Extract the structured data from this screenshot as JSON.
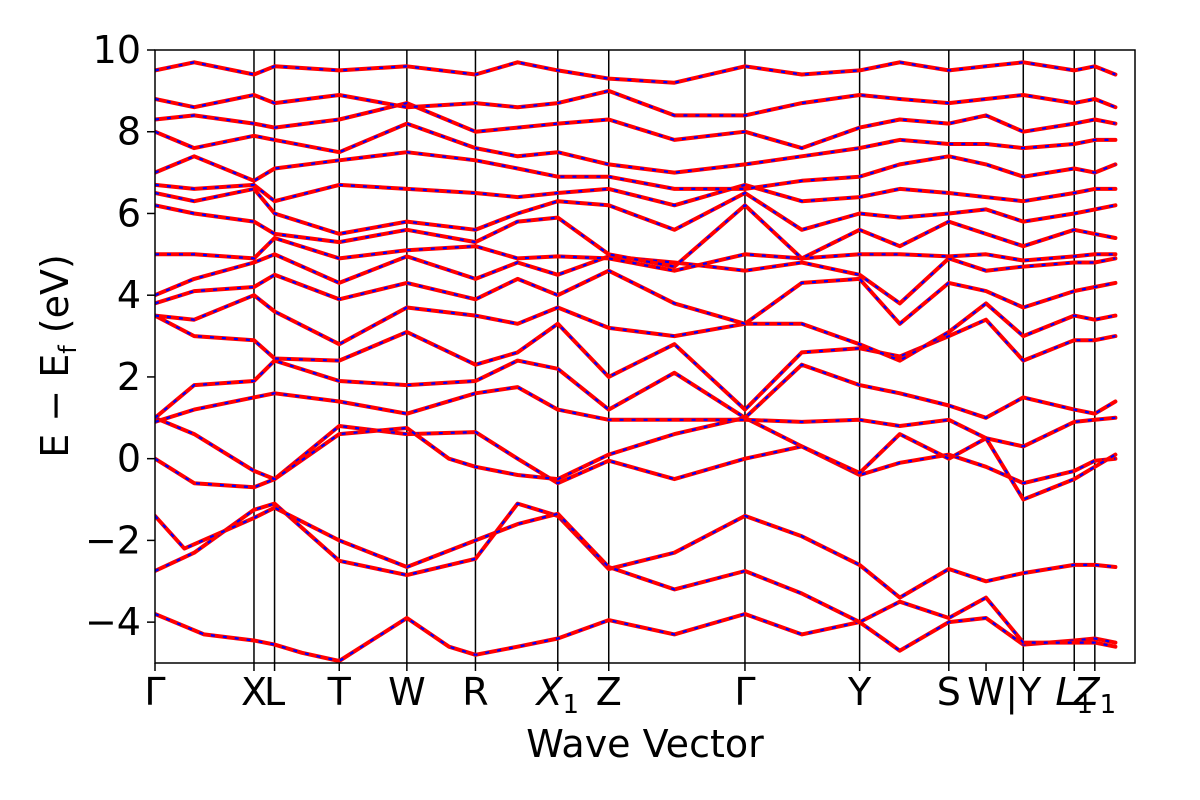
{
  "chart_data": {
    "type": "line",
    "title": "",
    "xlabel": "Wave Vector",
    "ylabel": "E − E",
    "ylabel_sub": "f",
    "ylabel_unit": " (eV)",
    "ylim": [
      -5,
      10
    ],
    "yticks": [
      -4,
      -2,
      0,
      2,
      4,
      6,
      8,
      10
    ],
    "ytick_labels": [
      "−4",
      "−2",
      "0",
      "2",
      "4",
      "6",
      "8",
      "10"
    ],
    "kpath": [
      {
        "label": "Γ",
        "pos": 0.0
      },
      {
        "label": "X",
        "pos": 0.101
      },
      {
        "label": "L",
        "pos": 0.122
      },
      {
        "label": "T",
        "pos": 0.188
      },
      {
        "label": "W",
        "pos": 0.257
      },
      {
        "label": "R",
        "pos": 0.327
      },
      {
        "label": "X",
        "sub": "1",
        "pos": 0.411
      },
      {
        "label": "Z",
        "pos": 0.463
      },
      {
        "label": "Γ",
        "pos": 0.602
      },
      {
        "label": "Y",
        "pos": 0.719
      },
      {
        "label": "S",
        "pos": 0.81
      },
      {
        "label": "W",
        "pos": 0.848
      },
      {
        "label": "|Y",
        "pos": 0.886
      },
      {
        "label": "L",
        "sub": "1",
        "pos": 0.938
      },
      {
        "label": "Z",
        "sub": "1",
        "pos": 0.959
      }
    ],
    "kpoint_lines": [
      0.101,
      0.122,
      0.188,
      0.257,
      0.327,
      0.411,
      0.463,
      0.602,
      0.719,
      0.81,
      0.886,
      0.938,
      0.959
    ],
    "series_styles": [
      {
        "color": "#ff0000",
        "style": "solid"
      },
      {
        "color": "#0000ff",
        "style": "dashed"
      }
    ],
    "bands": [
      {
        "x": [
          0,
          0.05,
          0.101,
          0.122,
          0.15,
          0.188,
          0.257,
          0.3,
          0.327,
          0.37,
          0.411,
          0.463,
          0.53,
          0.602,
          0.66,
          0.719,
          0.76,
          0.81,
          0.848,
          0.886,
          0.938,
          0.959,
          0.98
        ],
        "y": [
          -3.8,
          -4.3,
          -4.45,
          -4.55,
          -4.75,
          -4.95,
          -3.9,
          -4.6,
          -4.8,
          -4.6,
          -4.4,
          -3.95,
          -4.3,
          -3.8,
          -4.3,
          -4.0,
          -4.7,
          -4.0,
          -3.9,
          -4.55,
          -4.45,
          -4.4,
          -4.5
        ]
      },
      {
        "x": [
          0,
          0.04,
          0.101,
          0.122,
          0.188,
          0.257,
          0.327,
          0.37,
          0.411,
          0.463,
          0.53,
          0.602,
          0.66,
          0.719,
          0.76,
          0.81,
          0.848,
          0.886,
          0.938,
          0.959,
          0.98
        ],
        "y": [
          -2.75,
          -2.3,
          -1.25,
          -1.1,
          -2.5,
          -2.85,
          -2.45,
          -1.1,
          -1.4,
          -2.7,
          -2.3,
          -1.4,
          -1.9,
          -2.6,
          -3.4,
          -2.7,
          -3.0,
          -2.8,
          -2.6,
          -2.6,
          -2.65
        ]
      },
      {
        "x": [
          0,
          0.03,
          0.101,
          0.122,
          0.188,
          0.257,
          0.327,
          0.37,
          0.411,
          0.463,
          0.53,
          0.602,
          0.66,
          0.719,
          0.76,
          0.81,
          0.848,
          0.886,
          0.938,
          0.959,
          0.98
        ],
        "y": [
          -1.4,
          -2.2,
          -1.45,
          -1.2,
          -2.0,
          -2.65,
          -2.0,
          -1.6,
          -1.35,
          -2.65,
          -3.2,
          -2.75,
          -3.3,
          -4.0,
          -3.5,
          -3.9,
          -3.4,
          -4.5,
          -4.5,
          -4.5,
          -4.6
        ]
      },
      {
        "x": [
          0,
          0.04,
          0.101,
          0.122,
          0.188,
          0.257,
          0.327,
          0.37,
          0.411,
          0.463,
          0.53,
          0.602,
          0.66,
          0.719,
          0.76,
          0.81,
          0.848,
          0.886,
          0.938,
          0.959,
          0.98
        ],
        "y": [
          0.0,
          -0.6,
          -0.7,
          -0.5,
          0.8,
          0.6,
          0.65,
          0.0,
          -0.6,
          -0.05,
          -0.5,
          0.0,
          0.3,
          -0.4,
          -0.1,
          0.1,
          -0.2,
          -0.6,
          -0.3,
          -0.05,
          0.0
        ]
      },
      {
        "x": [
          0,
          0.04,
          0.101,
          0.122,
          0.188,
          0.257,
          0.3,
          0.327,
          0.37,
          0.411,
          0.463,
          0.53,
          0.602,
          0.66,
          0.719,
          0.76,
          0.81,
          0.848,
          0.886,
          0.938,
          0.959,
          0.98
        ],
        "y": [
          1.0,
          0.6,
          -0.3,
          -0.5,
          0.6,
          0.75,
          0.0,
          -0.2,
          -0.4,
          -0.5,
          0.1,
          0.6,
          1.0,
          0.3,
          -0.35,
          0.6,
          0.0,
          0.5,
          -1.0,
          -0.5,
          -0.2,
          0.1
        ]
      },
      {
        "x": [
          0,
          0.04,
          0.101,
          0.122,
          0.188,
          0.257,
          0.327,
          0.37,
          0.411,
          0.463,
          0.53,
          0.602,
          0.66,
          0.719,
          0.76,
          0.81,
          0.848,
          0.886,
          0.938,
          0.959,
          0.98
        ],
        "y": [
          0.9,
          1.2,
          1.5,
          1.6,
          1.4,
          1.1,
          1.6,
          1.75,
          1.2,
          0.95,
          0.95,
          0.95,
          0.9,
          0.95,
          0.8,
          0.95,
          0.5,
          0.3,
          0.9,
          0.95,
          1.0
        ]
      },
      {
        "x": [
          0,
          0.04,
          0.101,
          0.122,
          0.188,
          0.257,
          0.327,
          0.37,
          0.411,
          0.463,
          0.53,
          0.602,
          0.66,
          0.719,
          0.76,
          0.81,
          0.848,
          0.886,
          0.938,
          0.959,
          0.98
        ],
        "y": [
          1.0,
          1.8,
          1.9,
          2.4,
          1.9,
          1.8,
          1.9,
          2.4,
          2.2,
          1.2,
          2.1,
          1.0,
          2.3,
          1.8,
          1.6,
          1.3,
          1.0,
          1.5,
          1.2,
          1.1,
          1.4
        ]
      },
      {
        "x": [
          0,
          0.04,
          0.101,
          0.122,
          0.188,
          0.257,
          0.327,
          0.37,
          0.411,
          0.463,
          0.53,
          0.602,
          0.66,
          0.719,
          0.76,
          0.81,
          0.848,
          0.886,
          0.938,
          0.959,
          0.98
        ],
        "y": [
          3.5,
          3.0,
          2.9,
          2.45,
          2.4,
          3.1,
          2.3,
          2.6,
          3.3,
          2.0,
          2.8,
          1.2,
          2.6,
          2.7,
          2.5,
          3.0,
          3.4,
          2.4,
          2.9,
          2.9,
          3.0
        ]
      },
      {
        "x": [
          0,
          0.04,
          0.101,
          0.122,
          0.188,
          0.257,
          0.327,
          0.37,
          0.411,
          0.463,
          0.53,
          0.602,
          0.66,
          0.719,
          0.76,
          0.81,
          0.848,
          0.886,
          0.938,
          0.959,
          0.98
        ],
        "y": [
          3.5,
          3.4,
          4.0,
          3.6,
          2.8,
          3.7,
          3.5,
          3.3,
          3.7,
          3.2,
          3.0,
          3.3,
          3.3,
          2.8,
          2.4,
          3.1,
          3.8,
          3.0,
          3.5,
          3.4,
          3.5
        ]
      },
      {
        "x": [
          0,
          0.04,
          0.101,
          0.122,
          0.188,
          0.257,
          0.327,
          0.37,
          0.411,
          0.463,
          0.53,
          0.602,
          0.66,
          0.719,
          0.76,
          0.81,
          0.848,
          0.886,
          0.938,
          0.959,
          0.98
        ],
        "y": [
          3.8,
          4.1,
          4.2,
          4.5,
          3.9,
          4.3,
          3.9,
          4.4,
          4.0,
          4.6,
          3.8,
          3.3,
          4.3,
          4.4,
          3.3,
          4.3,
          4.1,
          3.7,
          4.1,
          4.2,
          4.3
        ]
      },
      {
        "x": [
          0,
          0.04,
          0.101,
          0.122,
          0.188,
          0.257,
          0.327,
          0.37,
          0.411,
          0.463,
          0.53,
          0.602,
          0.66,
          0.719,
          0.76,
          0.81,
          0.848,
          0.886,
          0.938,
          0.959,
          0.98
        ],
        "y": [
          4.0,
          4.4,
          4.8,
          5.0,
          4.3,
          4.95,
          4.4,
          4.8,
          4.5,
          4.95,
          4.8,
          4.6,
          4.8,
          4.5,
          3.8,
          4.9,
          4.6,
          4.7,
          4.8,
          4.8,
          4.9
        ]
      },
      {
        "x": [
          0,
          0.04,
          0.101,
          0.122,
          0.188,
          0.257,
          0.327,
          0.37,
          0.411,
          0.463,
          0.53,
          0.602,
          0.66,
          0.719,
          0.76,
          0.81,
          0.848,
          0.886,
          0.938,
          0.959,
          0.98
        ],
        "y": [
          5.0,
          5.0,
          4.9,
          5.4,
          4.9,
          5.1,
          5.2,
          4.9,
          4.95,
          4.9,
          4.6,
          5.0,
          4.9,
          5.0,
          5.0,
          4.95,
          5.0,
          4.85,
          4.95,
          5.0,
          5.0
        ]
      },
      {
        "x": [
          0,
          0.04,
          0.101,
          0.122,
          0.188,
          0.257,
          0.327,
          0.37,
          0.411,
          0.463,
          0.53,
          0.602,
          0.66,
          0.719,
          0.76,
          0.81,
          0.848,
          0.886,
          0.938,
          0.959,
          0.98
        ],
        "y": [
          6.2,
          6.0,
          5.8,
          5.5,
          5.3,
          5.6,
          5.3,
          5.8,
          5.9,
          5.0,
          4.7,
          6.2,
          4.9,
          5.6,
          5.2,
          5.8,
          5.5,
          5.2,
          5.6,
          5.5,
          5.4
        ]
      },
      {
        "x": [
          0,
          0.04,
          0.101,
          0.122,
          0.188,
          0.257,
          0.327,
          0.37,
          0.411,
          0.463,
          0.53,
          0.602,
          0.66,
          0.719,
          0.76,
          0.81,
          0.848,
          0.886,
          0.938,
          0.959,
          0.98
        ],
        "y": [
          6.5,
          6.3,
          6.6,
          6.0,
          5.5,
          5.8,
          5.6,
          6.0,
          6.3,
          6.2,
          5.6,
          6.5,
          5.6,
          6.0,
          5.9,
          6.0,
          6.1,
          5.8,
          6.0,
          6.1,
          6.2
        ]
      },
      {
        "x": [
          0,
          0.04,
          0.101,
          0.122,
          0.188,
          0.257,
          0.327,
          0.37,
          0.411,
          0.463,
          0.53,
          0.602,
          0.66,
          0.719,
          0.76,
          0.81,
          0.848,
          0.886,
          0.938,
          0.959,
          0.98
        ],
        "y": [
          6.7,
          6.6,
          6.7,
          6.3,
          6.7,
          6.6,
          6.5,
          6.4,
          6.5,
          6.6,
          6.2,
          6.7,
          6.3,
          6.4,
          6.6,
          6.5,
          6.4,
          6.3,
          6.5,
          6.6,
          6.6
        ]
      },
      {
        "x": [
          0,
          0.04,
          0.101,
          0.122,
          0.188,
          0.257,
          0.327,
          0.37,
          0.411,
          0.463,
          0.53,
          0.602,
          0.66,
          0.719,
          0.76,
          0.81,
          0.848,
          0.886,
          0.938,
          0.959,
          0.98
        ],
        "y": [
          7.0,
          7.4,
          6.8,
          7.1,
          7.3,
          7.5,
          7.3,
          7.1,
          6.9,
          6.9,
          6.6,
          6.6,
          6.8,
          6.9,
          7.2,
          7.4,
          7.2,
          6.9,
          7.1,
          7.0,
          7.2
        ]
      },
      {
        "x": [
          0,
          0.04,
          0.101,
          0.122,
          0.188,
          0.257,
          0.327,
          0.37,
          0.411,
          0.463,
          0.53,
          0.602,
          0.66,
          0.719,
          0.76,
          0.81,
          0.848,
          0.886,
          0.938,
          0.959,
          0.98
        ],
        "y": [
          8.0,
          7.6,
          7.9,
          7.8,
          7.5,
          8.2,
          7.6,
          7.4,
          7.5,
          7.2,
          7.0,
          7.2,
          7.4,
          7.6,
          7.8,
          7.7,
          7.7,
          7.6,
          7.7,
          7.8,
          7.8
        ]
      },
      {
        "x": [
          0,
          0.04,
          0.101,
          0.122,
          0.188,
          0.257,
          0.327,
          0.37,
          0.411,
          0.463,
          0.53,
          0.602,
          0.66,
          0.719,
          0.76,
          0.81,
          0.848,
          0.886,
          0.938,
          0.959,
          0.98
        ],
        "y": [
          8.3,
          8.4,
          8.2,
          8.1,
          8.3,
          8.7,
          8.0,
          8.1,
          8.2,
          8.3,
          7.8,
          8.0,
          7.6,
          8.1,
          8.3,
          8.2,
          8.4,
          8.0,
          8.2,
          8.3,
          8.2
        ]
      },
      {
        "x": [
          0,
          0.04,
          0.101,
          0.122,
          0.188,
          0.257,
          0.327,
          0.37,
          0.411,
          0.463,
          0.53,
          0.602,
          0.66,
          0.719,
          0.76,
          0.81,
          0.848,
          0.886,
          0.938,
          0.959,
          0.98
        ],
        "y": [
          8.8,
          8.6,
          8.9,
          8.7,
          8.9,
          8.6,
          8.7,
          8.6,
          8.7,
          9.0,
          8.4,
          8.4,
          8.7,
          8.9,
          8.8,
          8.7,
          8.8,
          8.9,
          8.7,
          8.8,
          8.6
        ]
      },
      {
        "x": [
          0,
          0.04,
          0.101,
          0.122,
          0.188,
          0.257,
          0.327,
          0.37,
          0.411,
          0.463,
          0.53,
          0.602,
          0.66,
          0.719,
          0.76,
          0.81,
          0.848,
          0.886,
          0.938,
          0.959,
          0.98
        ],
        "y": [
          9.5,
          9.7,
          9.4,
          9.6,
          9.5,
          9.6,
          9.4,
          9.7,
          9.5,
          9.3,
          9.2,
          9.6,
          9.4,
          9.5,
          9.7,
          9.5,
          9.6,
          9.7,
          9.5,
          9.6,
          9.4
        ]
      }
    ]
  }
}
